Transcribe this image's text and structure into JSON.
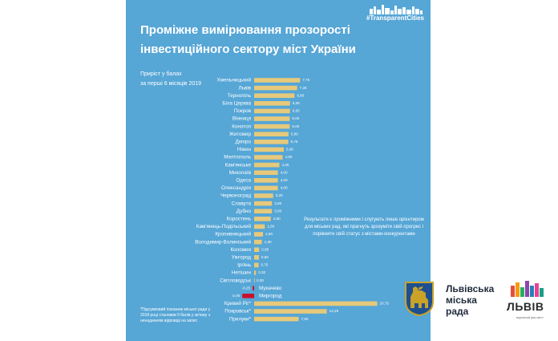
{
  "header": {
    "title_line1": "Проміжне вимірювання прозорості",
    "title_line2": "інвестиційного сектору міст України",
    "hashtag": "#TransparentCities"
  },
  "subtitle": {
    "line1": "Приріст у балах",
    "line2": "за перші 6 місяців 2019"
  },
  "note": "Результати є проміжними і слугують лише орієнтиром для міських рад, які прагнуть зрозуміти свій прогрес і порівняти свій статус з містами-конкурентами",
  "footnote": "*Підсумковий показник міської ради у 2018 році становив 0 балів у зв'язку з ненаданням відповіді на запит.",
  "logo": {
    "city_line1": "Львівська",
    "city_line2": "міська",
    "city_line3": "рада",
    "brand": "ЛЬВІВ",
    "brand_sub": "ВІДКРИТИЙ ДЛЯ СВІТУ"
  },
  "colors": {
    "background": "#56a6d6",
    "bar": "#e6c97a",
    "negative_bar": "#c8102e",
    "text": "#ffffff"
  },
  "chart_data": {
    "type": "bar",
    "orientation": "horizontal",
    "grid": false,
    "categories": [
      "Хмельницький",
      "Львів",
      "Тернопіль",
      "Біла Церква",
      "Покров",
      "Вінниця",
      "Конотоп",
      "Житомир",
      "Дніпро",
      "Ніжин",
      "Мелітополь",
      "Кам'янське",
      "Миколаїв",
      "Одеса",
      "Олександрія",
      "Червоноград",
      "Славута",
      "Дубно",
      "Коростень",
      "Кам'янець-Подільський",
      "Кропивницький",
      "Володимир-Волинський",
      "Коломия",
      "Ужгород",
      "Ірпінь",
      "Нетішин",
      "Світловодськ",
      "Мукачево",
      "Миргород",
      "Кривий Ріг*",
      "Покровськ*",
      "Прилуки*"
    ],
    "values": [
      7.75,
      7.25,
      6.8,
      6.05,
      6.05,
      6.0,
      6.0,
      5.8,
      5.75,
      5.0,
      4.8,
      4.25,
      4.0,
      4.0,
      4.0,
      3.2,
      3.0,
      3.0,
      2.8,
      1.8,
      1.5,
      1.3,
      0.85,
      0.8,
      0.75,
      0.3,
      0.0,
      -0.25,
      -2.0,
      20.75,
      12.25,
      7.5
    ],
    "labels": [
      "7,75",
      "7,25",
      "6,80",
      "6,05",
      "6,05",
      "6,00",
      "6,00",
      "5,80",
      "5,75",
      "5,00",
      "4,80",
      "4,25",
      "4,00",
      "4,00",
      "4,00",
      "3,20",
      "3,00",
      "3,00",
      "2,80",
      "1,80",
      "1,50",
      "1,30",
      "0,85",
      "0,80",
      "0,75",
      "0,30",
      "0,00",
      "-0,25",
      "-2,00",
      "20,75",
      "12,25",
      "7,50"
    ],
    "label_side": [
      "left",
      "left",
      "left",
      "left",
      "left",
      "left",
      "left",
      "left",
      "left",
      "left",
      "left",
      "left",
      "left",
      "left",
      "left",
      "left",
      "left",
      "left",
      "left",
      "left",
      "left",
      "left",
      "left",
      "left",
      "left",
      "left",
      "left",
      "right",
      "right",
      "left",
      "left",
      "left"
    ]
  }
}
